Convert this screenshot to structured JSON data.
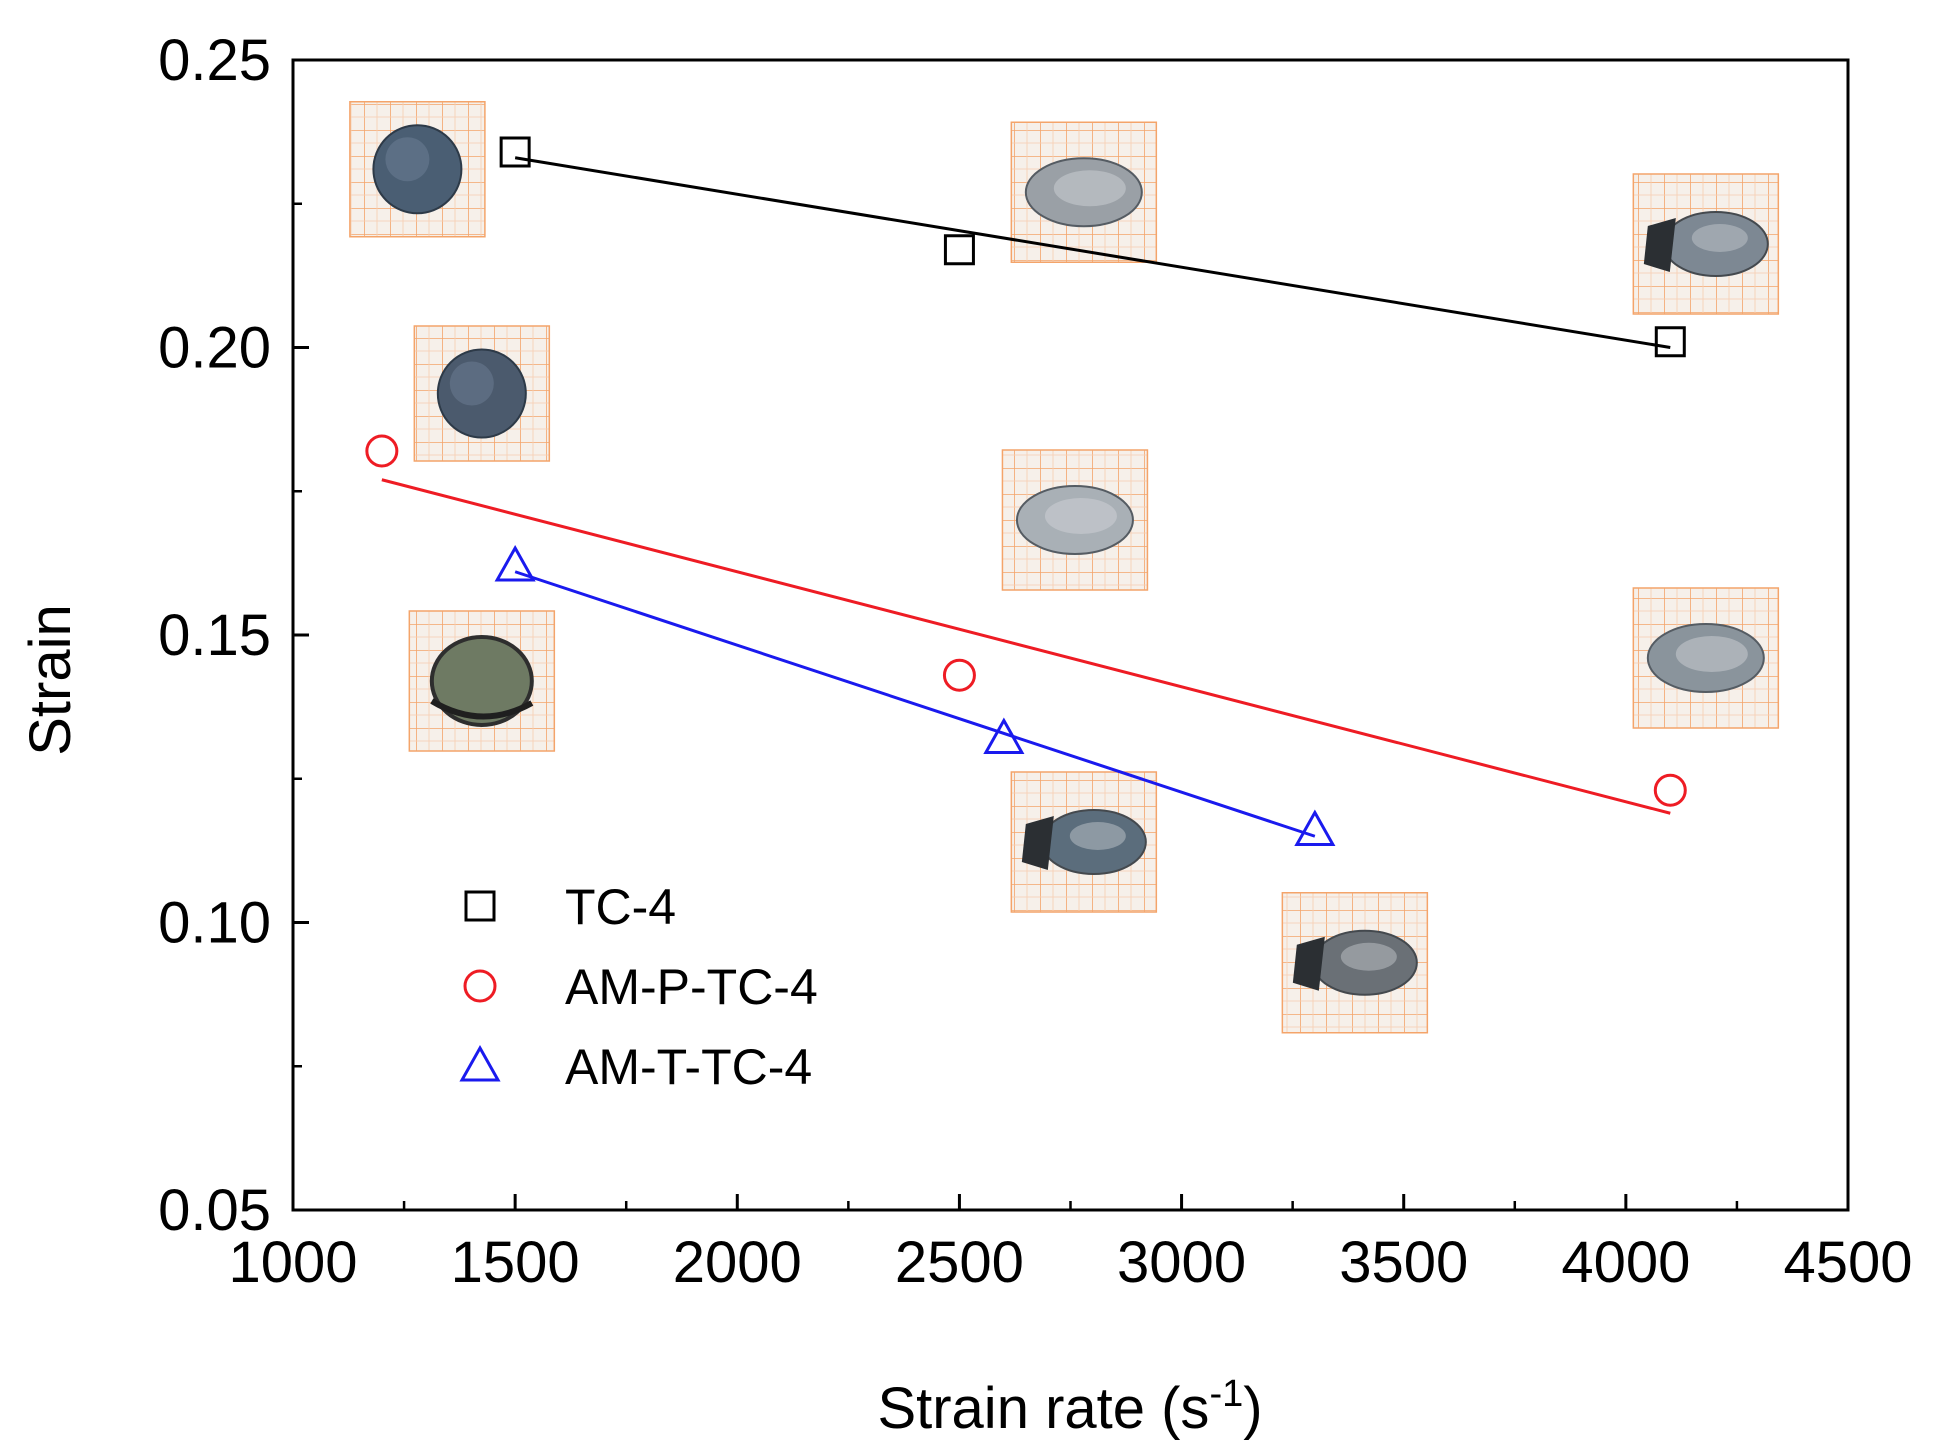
{
  "chart_data": {
    "type": "scatter",
    "title": "",
    "xlabel": "Strain rate (s",
    "xlabel_sup": "-1",
    "xlabel_close": ")",
    "ylabel": "Strain",
    "xlim": [
      1000,
      4500
    ],
    "ylim": [
      0.05,
      0.25
    ],
    "x_ticks": [
      1000,
      1500,
      2000,
      2500,
      3000,
      3500,
      4000,
      4500
    ],
    "x_tick_labels": [
      "1000",
      "1500",
      "2000",
      "2500",
      "3000",
      "3500",
      "4000",
      "4500"
    ],
    "y_ticks": [
      0.05,
      0.1,
      0.15,
      0.2,
      0.25
    ],
    "y_tick_labels": [
      "0.05",
      "0.10",
      "0.15",
      "0.20",
      "0.25"
    ],
    "grid": false,
    "legend_position": "bottom-left",
    "series": [
      {
        "name": "TC-4",
        "marker": "square",
        "color": "#000000",
        "x": [
          1500,
          2500,
          4100
        ],
        "y": [
          0.234,
          0.217,
          0.201
        ],
        "fit": {
          "x": [
            1500,
            4100
          ],
          "y": [
            0.233,
            0.2
          ]
        }
      },
      {
        "name": "AM-P-TC-4",
        "marker": "circle",
        "color": "#ee1c24",
        "x": [
          1200,
          2500,
          4100
        ],
        "y": [
          0.182,
          0.143,
          0.123
        ],
        "fit": {
          "x": [
            1200,
            4100
          ],
          "y": [
            0.177,
            0.119
          ]
        }
      },
      {
        "name": "AM-T-TC-4",
        "marker": "triangle",
        "color": "#1a1aee",
        "x": [
          1500,
          2600,
          3300
        ],
        "y": [
          0.162,
          0.132,
          0.116
        ],
        "fit": {
          "x": [
            1500,
            3300
          ],
          "y": [
            0.161,
            0.115
          ]
        }
      }
    ],
    "insets": [
      {
        "name": "specimen-tc4-1500",
        "shape": "disc",
        "tone": "#4a5e73",
        "x": 1280,
        "y": 0.231
      },
      {
        "name": "specimen-tc4-2500",
        "shape": "flattened",
        "tone": "#9aa0a6",
        "x": 2780,
        "y": 0.227
      },
      {
        "name": "specimen-tc4-4100",
        "shape": "fractured",
        "tone": "#7d8893",
        "x": 4180,
        "y": 0.218
      },
      {
        "name": "specimen-amp-1200",
        "shape": "disc",
        "tone": "#4b5a6d",
        "x": 1425,
        "y": 0.192
      },
      {
        "name": "specimen-amp-2500",
        "shape": "flattened",
        "tone": "#a9b0b6",
        "x": 2760,
        "y": 0.17
      },
      {
        "name": "specimen-amp-4100",
        "shape": "flattened",
        "tone": "#8a949c",
        "x": 4180,
        "y": 0.146
      },
      {
        "name": "specimen-amt-1500",
        "shape": "cracked",
        "tone": "#6e7a63",
        "x": 1425,
        "y": 0.142
      },
      {
        "name": "specimen-amt-2600",
        "shape": "fractured",
        "tone": "#5b6d7c",
        "x": 2780,
        "y": 0.114
      },
      {
        "name": "specimen-amt-3300",
        "shape": "fractured",
        "tone": "#6a7076",
        "x": 3390,
        "y": 0.093
      }
    ]
  }
}
